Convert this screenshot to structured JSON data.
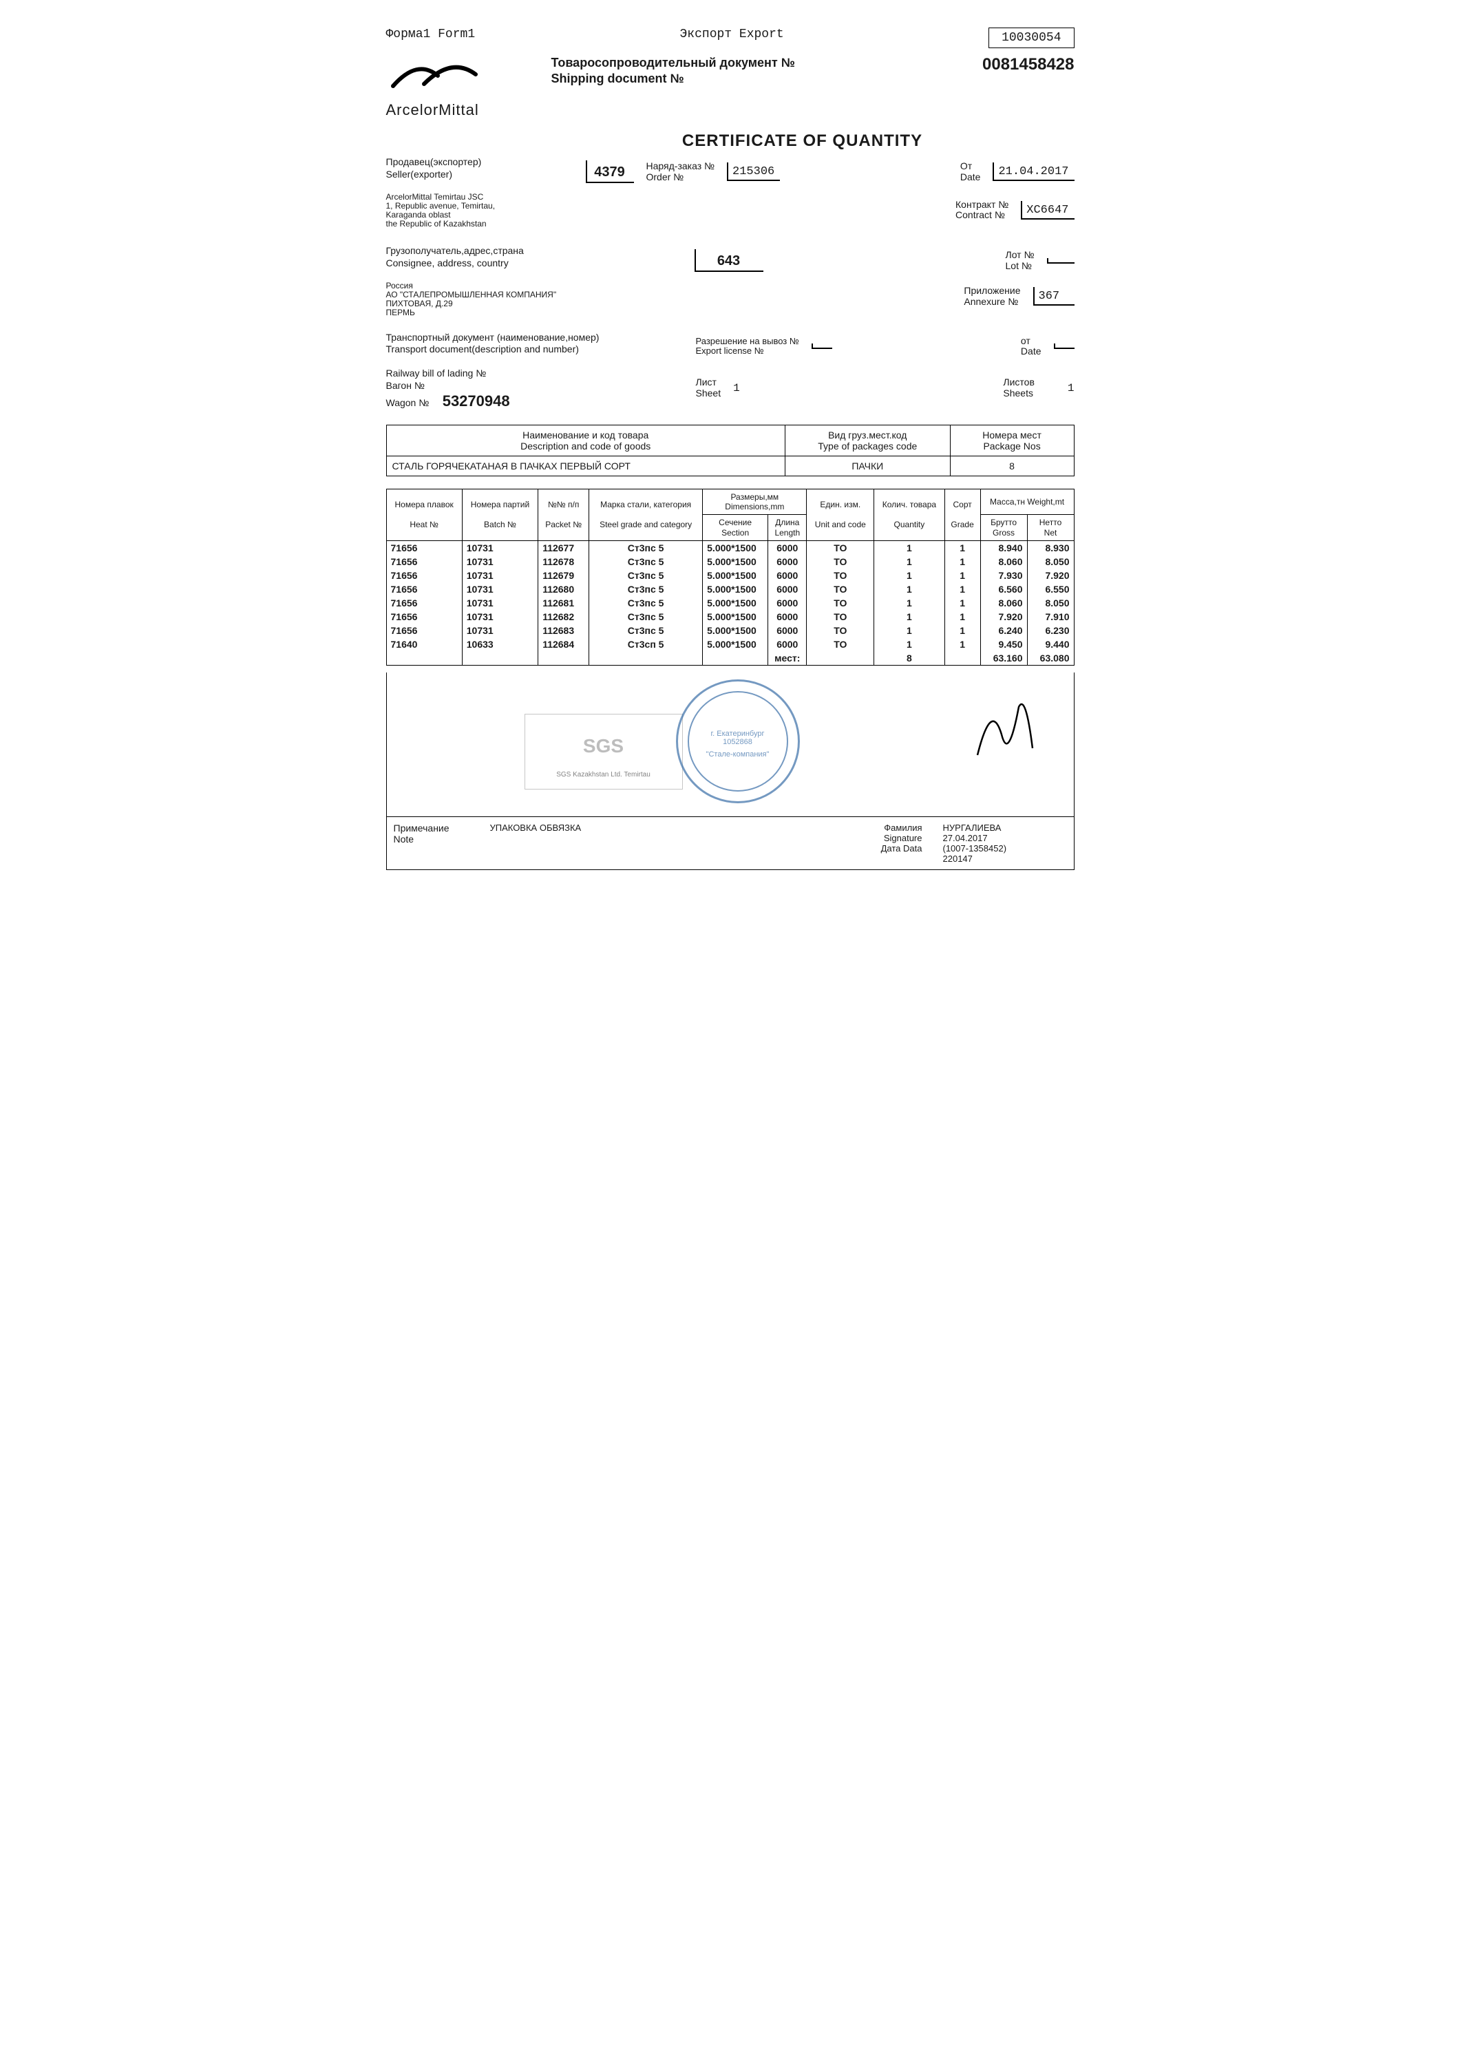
{
  "top": {
    "form": "Форма1  Form1",
    "export": "Экспорт   Export",
    "doc_id": "10030054"
  },
  "logo_name": "ArcelorMittal",
  "ship_doc_ru": "Товаросопроводительный документ №",
  "ship_doc_en": "Shipping document №",
  "ship_doc_num": "0081458428",
  "cert_title": "CERTIFICATE OF QUANTITY",
  "seller": {
    "label_ru": "Продавец(экспортер)",
    "label_en": "Seller(exporter)",
    "line1": "ArcelorMittal Temirtau JSC",
    "line2": "1, Republic avenue, Temirtau,",
    "line3": "Karaganda oblast",
    "line4": "the Republic of Kazakhstan"
  },
  "box_4379": "4379",
  "order": {
    "label_ru": "Наряд-заказ №",
    "label_en": "Order №",
    "value": "215306"
  },
  "date": {
    "label_ru": "От",
    "label_en": "Date",
    "value": "21.04.2017"
  },
  "contract": {
    "label_ru": "Контракт №",
    "label_en": "Contract №",
    "value": "XC6647"
  },
  "consignee": {
    "label_ru": "Грузополучатель,адрес,страна",
    "label_en": "Consignee, address, country",
    "country_code": "643",
    "line1": "Россия",
    "line2": "АО \"СТАЛЕПРОМЫШЛЕННАЯ КОМПАНИЯ\"",
    "line3": "ПИХТОВАЯ, Д.29",
    "line4": "ПЕРМЬ"
  },
  "lot": {
    "label_ru": "Лот №",
    "label_en": "Lot №",
    "value": ""
  },
  "annex": {
    "label_ru": "Приложение",
    "label_en": "Annexure №",
    "value": "367"
  },
  "transport": {
    "label_ru": "Транспортный документ (наименование,номер)",
    "label_en": "Transport document(description and number)",
    "rail_label": "Railway bill of lading №",
    "wagon_ru": "Вагон №",
    "wagon_en": "Wagon №",
    "wagon_num": "53270948"
  },
  "export_lic": {
    "label_ru": "Разрешение на вывоз №",
    "label_en": "Export license №",
    "date_ru": "от",
    "date_en": "Date"
  },
  "sheet": {
    "label_ru": "Лист",
    "label_en": "Sheet",
    "value": "1",
    "total_ru": "Листов",
    "total_en": "Sheets",
    "total": "1"
  },
  "goods": {
    "desc_hdr_ru": "Наименование и код товара",
    "desc_hdr_en": "Description and code of goods",
    "pkg_hdr_ru": "Вид груз.мест.код",
    "pkg_hdr_en": "Type of packages code",
    "pkgno_hdr_ru": "Номера мест",
    "pkgno_hdr_en": "Package Nos",
    "desc_val": "СТАЛЬ ГОРЯЧЕКАТАНАЯ В ПАЧКАХ ПЕРВЫЙ СОРТ",
    "pkg_val": "ПАЧКИ",
    "pkgno_val": "8"
  },
  "tbl_headers": {
    "heat_ru": "Номера плавок",
    "heat_en": "Heat №",
    "batch_ru": "Номера партий",
    "batch_en": "Batch №",
    "packet_ru": "№№ п/п",
    "packet_en": "Packet №",
    "grade_ru": "Марка стали, категория",
    "grade_en": "Steel grade and category",
    "dim_ru": "Размеры,мм",
    "dim_en": "Dimensions,mm",
    "section_ru": "Сечение",
    "section_en": "Section",
    "length_ru": "Длина",
    "length_en": "Length",
    "unit_ru": "Един. изм.",
    "unit_en": "Unit and code",
    "qty_ru": "Колич. товара",
    "qty_en": "Quantity",
    "sort_ru": "Сорт",
    "sort_en": "Grade",
    "mass_ru": "Масса,тн",
    "mass_en": "Weight,mt",
    "gross_ru": "Брутто",
    "gross_en": "Gross",
    "net_ru": "Нетто",
    "net_en": "Net"
  },
  "rows": [
    {
      "heat": "71656",
      "batch": "10731",
      "packet": "112677",
      "grade": "Ст3пс 5",
      "section": "5.000*1500",
      "length": "6000",
      "unit": "ТО",
      "qty": "1",
      "sort": "1",
      "gross": "8.940",
      "net": "8.930"
    },
    {
      "heat": "71656",
      "batch": "10731",
      "packet": "112678",
      "grade": "Ст3пс 5",
      "section": "5.000*1500",
      "length": "6000",
      "unit": "ТО",
      "qty": "1",
      "sort": "1",
      "gross": "8.060",
      "net": "8.050"
    },
    {
      "heat": "71656",
      "batch": "10731",
      "packet": "112679",
      "grade": "Ст3пс 5",
      "section": "5.000*1500",
      "length": "6000",
      "unit": "ТО",
      "qty": "1",
      "sort": "1",
      "gross": "7.930",
      "net": "7.920"
    },
    {
      "heat": "71656",
      "batch": "10731",
      "packet": "112680",
      "grade": "Ст3пс 5",
      "section": "5.000*1500",
      "length": "6000",
      "unit": "ТО",
      "qty": "1",
      "sort": "1",
      "gross": "6.560",
      "net": "6.550"
    },
    {
      "heat": "71656",
      "batch": "10731",
      "packet": "112681",
      "grade": "Ст3пс 5",
      "section": "5.000*1500",
      "length": "6000",
      "unit": "ТО",
      "qty": "1",
      "sort": "1",
      "gross": "8.060",
      "net": "8.050"
    },
    {
      "heat": "71656",
      "batch": "10731",
      "packet": "112682",
      "grade": "Ст3пс 5",
      "section": "5.000*1500",
      "length": "6000",
      "unit": "ТО",
      "qty": "1",
      "sort": "1",
      "gross": "7.920",
      "net": "7.910"
    },
    {
      "heat": "71656",
      "batch": "10731",
      "packet": "112683",
      "grade": "Ст3пс 5",
      "section": "5.000*1500",
      "length": "6000",
      "unit": "ТО",
      "qty": "1",
      "sort": "1",
      "gross": "6.240",
      "net": "6.230"
    },
    {
      "heat": "71640",
      "batch": "10633",
      "packet": "112684",
      "grade": "Ст3сп 5",
      "section": "5.000*1500",
      "length": "6000",
      "unit": "ТО",
      "qty": "1",
      "sort": "1",
      "gross": "9.450",
      "net": "9.440"
    }
  ],
  "totals": {
    "places_label": "мест:",
    "qty": "8",
    "gross": "63.160",
    "net": "63.080"
  },
  "stamp": {
    "sgs": "SGS",
    "sgs_sub": "SGS Kazakhstan Ltd. Temirtau",
    "city": "г. Екатеринбург",
    "num": "1052868",
    "inner": "\"Стале-компания\""
  },
  "footer": {
    "note_ru": "Примечание",
    "note_en": "Note",
    "pack": "УПАКОВКА ОБВЯЗКА",
    "sig_ru": "Фамилия",
    "sig_en": "Signature",
    "date_ru": "Дата",
    "date_en": "Data",
    "name": "НУРГАЛИЕВА",
    "d1": "27.04.2017",
    "d2": "(1007-1358452)",
    "d3": "220147"
  }
}
